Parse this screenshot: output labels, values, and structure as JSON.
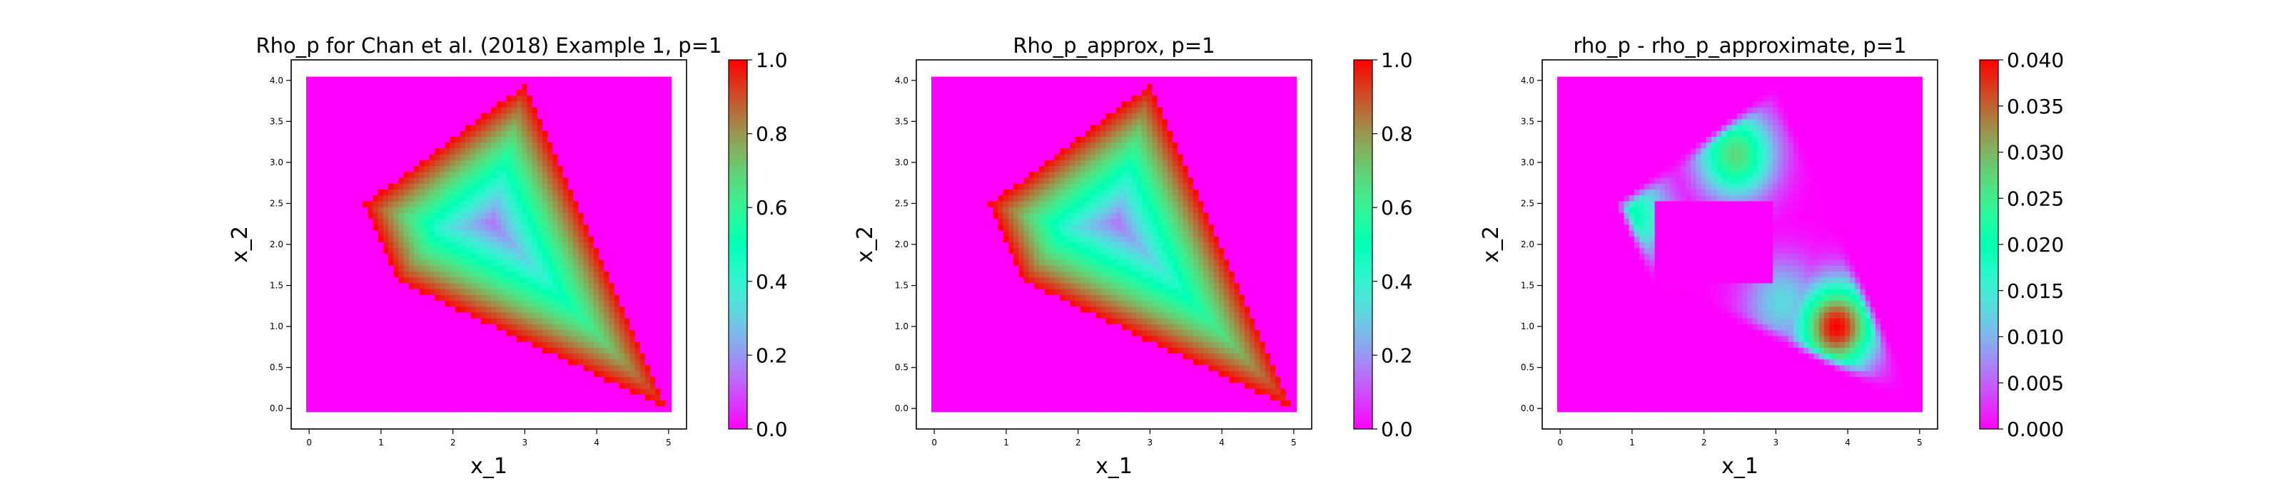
{
  "chart_data": [
    {
      "type": "heatmap",
      "title": "Rho_p for Chan et al. (2018) Example 1, p=1",
      "xlabel": "x_1",
      "ylabel": "x_2",
      "xlim": [
        0,
        5
      ],
      "ylim": [
        0,
        4
      ],
      "x_ticks": [
        "0",
        "1",
        "2",
        "3",
        "4",
        "5"
      ],
      "y_ticks": [
        "0.0",
        "0.5",
        "1.0",
        "1.5",
        "2.0",
        "2.5",
        "3.0",
        "3.5",
        "4.0"
      ],
      "colormap": "rainbow",
      "value_range": [
        0,
        1
      ],
      "colorbar_ticks": [
        "0.0",
        "0.2",
        "0.4",
        "0.6",
        "0.8",
        "1.0"
      ],
      "polygon_vertices": [
        [
          3.0,
          3.95
        ],
        [
          0.78,
          2.5
        ],
        [
          1.25,
          1.55
        ],
        [
          5.0,
          0.0
        ]
      ],
      "minimum_point": [
        2.5,
        2.3
      ],
      "outside_value": 0.0,
      "boundary_value": 1.0
    },
    {
      "type": "heatmap",
      "title": "Rho_p_approx, p=1",
      "xlabel": "x_1",
      "ylabel": "x_2",
      "xlim": [
        0,
        5
      ],
      "ylim": [
        0,
        4
      ],
      "x_ticks": [
        "0",
        "1",
        "2",
        "3",
        "4",
        "5"
      ],
      "y_ticks": [
        "0.0",
        "0.5",
        "1.0",
        "1.5",
        "2.0",
        "2.5",
        "3.0",
        "3.5",
        "4.0"
      ],
      "colormap": "rainbow",
      "value_range": [
        0,
        1
      ],
      "colorbar_ticks": [
        "0.0",
        "0.2",
        "0.4",
        "0.6",
        "0.8",
        "1.0"
      ],
      "polygon_vertices": [
        [
          3.0,
          3.95
        ],
        [
          0.78,
          2.5
        ],
        [
          1.25,
          1.55
        ],
        [
          5.0,
          0.0
        ]
      ],
      "minimum_point": [
        2.5,
        2.3
      ],
      "outside_value": 0.0,
      "boundary_value": 1.0
    },
    {
      "type": "heatmap",
      "title": "rho_p - rho_p_approximate, p=1",
      "xlabel": "x_1",
      "ylabel": "x_2",
      "xlim": [
        0,
        5
      ],
      "ylim": [
        0,
        4
      ],
      "x_ticks": [
        "0",
        "1",
        "2",
        "3",
        "4",
        "5"
      ],
      "y_ticks": [
        "0.0",
        "0.5",
        "1.0",
        "1.5",
        "2.0",
        "2.5",
        "3.0",
        "3.5",
        "4.0"
      ],
      "colormap": "rainbow",
      "value_range": [
        0,
        0.04
      ],
      "colorbar_ticks": [
        "0.000",
        "0.005",
        "0.010",
        "0.015",
        "0.020",
        "0.025",
        "0.030",
        "0.035",
        "0.040"
      ],
      "polygon_vertices": [
        [
          3.0,
          3.95
        ],
        [
          0.78,
          2.5
        ],
        [
          1.25,
          1.55
        ],
        [
          5.0,
          0.0
        ]
      ],
      "hot_spots": [
        {
          "center": [
            3.85,
            1.0
          ],
          "peak": 0.04
        },
        {
          "center": [
            2.45,
            3.1
          ],
          "peak": 0.027
        },
        {
          "center": [
            1.0,
            2.35
          ],
          "peak": 0.02
        },
        {
          "center": [
            3.1,
            1.3
          ],
          "peak": 0.013
        }
      ],
      "clear_rectangle": {
        "x": [
          1.3,
          2.95
        ],
        "y": [
          1.55,
          2.55
        ]
      }
    }
  ]
}
